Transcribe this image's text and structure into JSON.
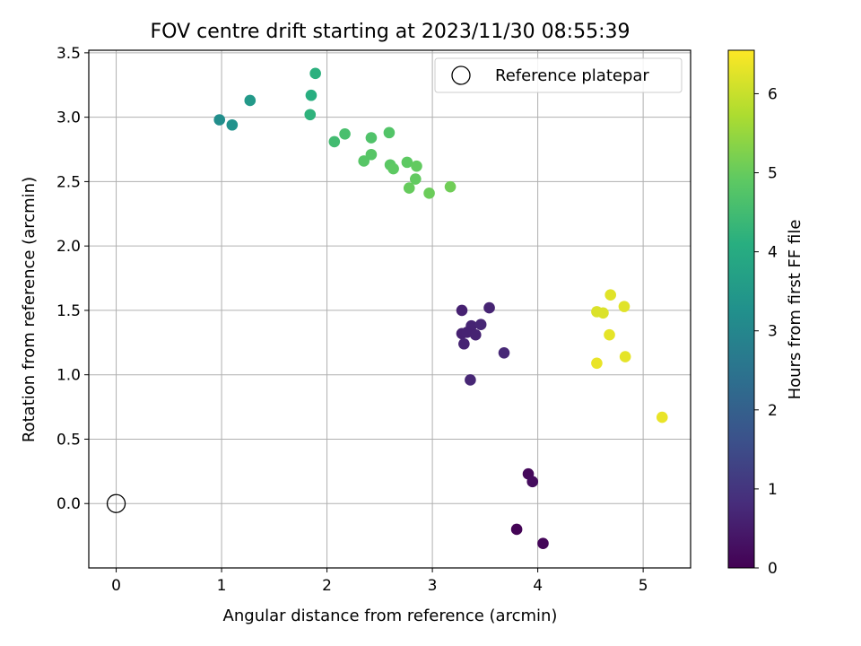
{
  "chart_data": {
    "type": "scatter",
    "title": "FOV centre drift starting at 2023/11/30 08:55:39",
    "xlabel": "Angular distance from reference (arcmin)",
    "ylabel": "Rotation from reference (arcmin)",
    "xlim": [
      -0.26,
      5.45
    ],
    "ylim": [
      -0.5,
      3.52
    ],
    "xticks": [
      0,
      1,
      2,
      3,
      4,
      5
    ],
    "xtick_labels": [
      "0",
      "1",
      "2",
      "3",
      "4",
      "5"
    ],
    "yticks": [
      0.0,
      0.5,
      1.0,
      1.5,
      2.0,
      2.5,
      3.0,
      3.5
    ],
    "ytick_labels": [
      "0.0",
      "0.5",
      "1.0",
      "1.5",
      "2.0",
      "2.5",
      "3.0",
      "3.5"
    ],
    "grid": true,
    "legend": {
      "position": "upper-right",
      "entries": [
        "Reference platepar"
      ]
    },
    "reference_point": {
      "x": 0,
      "y": 0,
      "label": "Reference platepar"
    },
    "colorbar": {
      "label": "Hours from first FF file",
      "range": [
        0,
        6.55
      ],
      "ticks": [
        0,
        1,
        2,
        3,
        4,
        5,
        6
      ],
      "tick_labels": [
        "0",
        "1",
        "2",
        "3",
        "4",
        "5",
        "6"
      ],
      "colormap": "viridis"
    },
    "points": [
      {
        "x": 3.8,
        "y": -0.2,
        "hours": 0.05
      },
      {
        "x": 4.05,
        "y": -0.31,
        "hours": 0.1
      },
      {
        "x": 3.91,
        "y": 0.23,
        "hours": 0.15
      },
      {
        "x": 3.95,
        "y": 0.17,
        "hours": 0.2
      },
      {
        "x": 3.28,
        "y": 1.5,
        "hours": 0.6
      },
      {
        "x": 3.54,
        "y": 1.52,
        "hours": 0.65
      },
      {
        "x": 3.37,
        "y": 1.38,
        "hours": 0.65
      },
      {
        "x": 3.46,
        "y": 1.39,
        "hours": 0.7
      },
      {
        "x": 3.28,
        "y": 1.32,
        "hours": 0.6
      },
      {
        "x": 3.33,
        "y": 1.33,
        "hours": 0.62
      },
      {
        "x": 3.41,
        "y": 1.31,
        "hours": 0.64
      },
      {
        "x": 3.3,
        "y": 1.24,
        "hours": 0.66
      },
      {
        "x": 3.68,
        "y": 1.17,
        "hours": 0.72
      },
      {
        "x": 3.36,
        "y": 0.96,
        "hours": 0.7
      },
      {
        "x": 0.98,
        "y": 2.98,
        "hours": 3.2
      },
      {
        "x": 1.1,
        "y": 2.94,
        "hours": 3.3
      },
      {
        "x": 1.27,
        "y": 3.13,
        "hours": 3.5
      },
      {
        "x": 1.85,
        "y": 3.17,
        "hours": 4.1
      },
      {
        "x": 1.89,
        "y": 3.34,
        "hours": 4.15
      },
      {
        "x": 1.84,
        "y": 3.02,
        "hours": 4.2
      },
      {
        "x": 2.07,
        "y": 2.81,
        "hours": 4.5
      },
      {
        "x": 2.17,
        "y": 2.87,
        "hours": 4.6
      },
      {
        "x": 2.42,
        "y": 2.84,
        "hours": 4.7
      },
      {
        "x": 2.59,
        "y": 2.88,
        "hours": 4.75
      },
      {
        "x": 2.35,
        "y": 2.66,
        "hours": 4.8
      },
      {
        "x": 2.42,
        "y": 2.71,
        "hours": 4.8
      },
      {
        "x": 2.6,
        "y": 2.63,
        "hours": 4.85
      },
      {
        "x": 2.63,
        "y": 2.6,
        "hours": 4.9
      },
      {
        "x": 2.76,
        "y": 2.65,
        "hours": 4.9
      },
      {
        "x": 2.85,
        "y": 2.62,
        "hours": 4.95
      },
      {
        "x": 2.84,
        "y": 2.52,
        "hours": 4.95
      },
      {
        "x": 2.78,
        "y": 2.45,
        "hours": 5.0
      },
      {
        "x": 2.97,
        "y": 2.41,
        "hours": 5.05
      },
      {
        "x": 3.17,
        "y": 2.46,
        "hours": 5.1
      },
      {
        "x": 4.56,
        "y": 1.49,
        "hours": 6.2
      },
      {
        "x": 4.62,
        "y": 1.48,
        "hours": 6.2
      },
      {
        "x": 4.69,
        "y": 1.62,
        "hours": 6.25
      },
      {
        "x": 4.82,
        "y": 1.53,
        "hours": 6.25
      },
      {
        "x": 4.68,
        "y": 1.31,
        "hours": 6.3
      },
      {
        "x": 4.56,
        "y": 1.09,
        "hours": 6.35
      },
      {
        "x": 4.83,
        "y": 1.14,
        "hours": 6.3
      },
      {
        "x": 5.18,
        "y": 0.67,
        "hours": 6.35
      }
    ]
  }
}
